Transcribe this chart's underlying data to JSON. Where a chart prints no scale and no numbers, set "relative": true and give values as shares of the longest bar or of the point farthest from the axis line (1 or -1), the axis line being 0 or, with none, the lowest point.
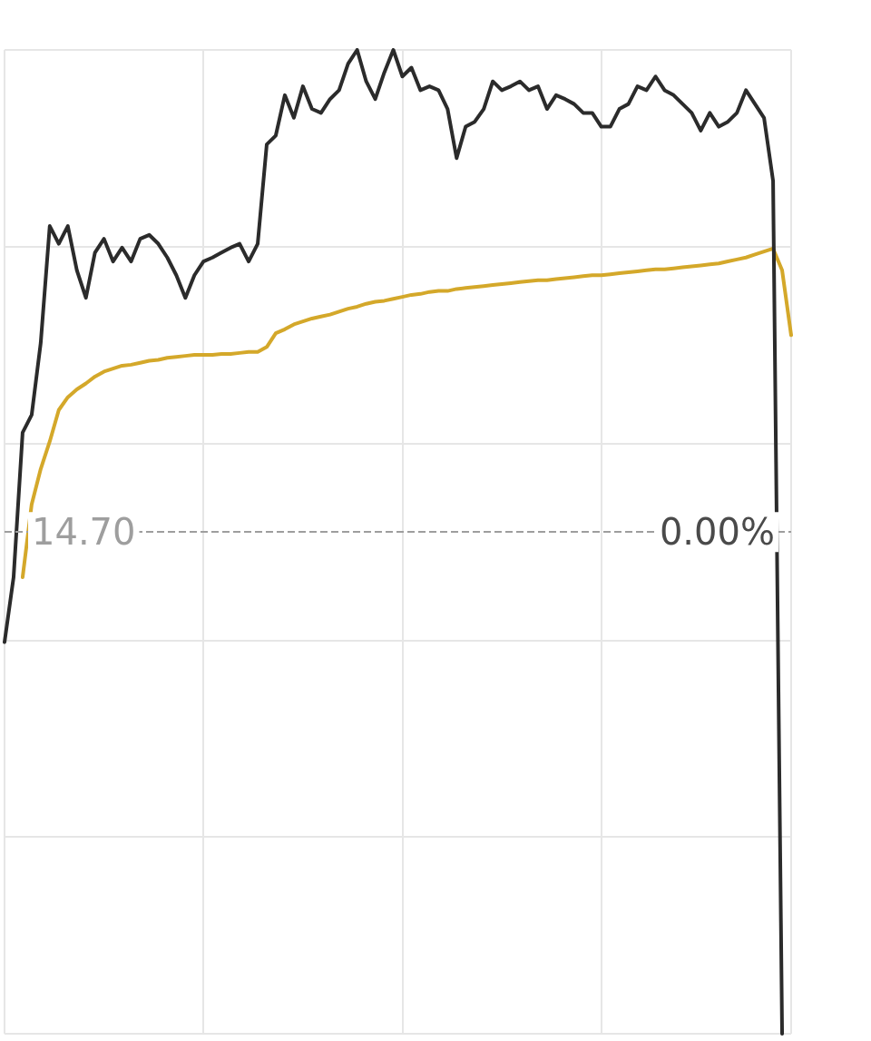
{
  "chart_data": {
    "type": "line",
    "relative": true,
    "grid": true,
    "marker": "none",
    "line_style": "solid",
    "categories": [
      null,
      null,
      null,
      null,
      null,
      null,
      null,
      null,
      null,
      null,
      null,
      null,
      null,
      null,
      null,
      null,
      null,
      null,
      null,
      null,
      null,
      null,
      null,
      null,
      null,
      null,
      null,
      null,
      null,
      null,
      null,
      null,
      null,
      null,
      null,
      null,
      null,
      null,
      null,
      null,
      null,
      null,
      null,
      null,
      null,
      null,
      null,
      null,
      null,
      null,
      null,
      null,
      null,
      null,
      null,
      null,
      null,
      null,
      null,
      null,
      null,
      null,
      null,
      null,
      null,
      null,
      null,
      null,
      null,
      null,
      null,
      null,
      null,
      null,
      null,
      null,
      null,
      null,
      null,
      null,
      null,
      null,
      null,
      null,
      null,
      null,
      null,
      null
    ],
    "series": [
      {
        "color": "#2b2b2b",
        "values": [
          0.398,
          0.464,
          0.611,
          0.629,
          0.702,
          0.821,
          0.803,
          0.821,
          0.776,
          0.748,
          0.794,
          0.808,
          0.785,
          0.799,
          0.785,
          0.808,
          0.812,
          0.803,
          0.789,
          0.771,
          0.748,
          0.771,
          0.785,
          0.789,
          0.794,
          0.799,
          0.803,
          0.785,
          0.803,
          0.904,
          0.913,
          0.954,
          0.931,
          0.963,
          0.94,
          0.936,
          0.95,
          0.959,
          0.986,
          1,
          0.968,
          0.95,
          0.977,
          1,
          0.973,
          0.982,
          0.959,
          0.963,
          0.959,
          0.94,
          0.89,
          0.922,
          0.927,
          0.94,
          0.968,
          0.959,
          0.963,
          0.968,
          0.959,
          0.963,
          0.94,
          0.954,
          0.95,
          0.945,
          0.936,
          0.936,
          0.922,
          0.922,
          0.94,
          0.945,
          0.963,
          0.959,
          0.973,
          0.959,
          0.954,
          0.945,
          0.936,
          0.918,
          0.936,
          0.922,
          0.927,
          0.936,
          0.959,
          0.945,
          0.931,
          0.867,
          0,
          null
        ]
      },
      {
        "color": "#d4a82a",
        "values": [
          null,
          null,
          0.464,
          0.538,
          0.574,
          0.602,
          0.634,
          0.647,
          0.655,
          0.661,
          0.668,
          0.673,
          0.676,
          0.679,
          0.68,
          0.682,
          0.684,
          0.685,
          0.687,
          0.688,
          0.689,
          0.69,
          0.69,
          0.69,
          0.691,
          0.691,
          0.692,
          0.693,
          0.693,
          0.698,
          0.712,
          0.716,
          0.721,
          0.724,
          0.727,
          0.729,
          0.731,
          0.734,
          0.737,
          0.739,
          0.742,
          0.744,
          0.745,
          0.747,
          0.749,
          0.751,
          0.752,
          0.754,
          0.755,
          0.755,
          0.757,
          0.758,
          0.759,
          0.76,
          0.761,
          0.762,
          0.763,
          0.764,
          0.765,
          0.766,
          0.766,
          0.767,
          0.768,
          0.769,
          0.77,
          0.771,
          0.771,
          0.772,
          0.773,
          0.774,
          0.775,
          0.776,
          0.777,
          0.777,
          0.778,
          0.779,
          0.78,
          0.781,
          0.782,
          0.783,
          0.785,
          0.787,
          0.789,
          0.792,
          0.795,
          0.798,
          0.776,
          0.71
        ]
      }
    ],
    "ref_lines": [
      {
        "axis": "y",
        "value": 0.51,
        "color": "#9e9e9e",
        "line_style": "dashed"
      }
    ],
    "annotations": [
      "14.70",
      "0.00%"
    ]
  }
}
